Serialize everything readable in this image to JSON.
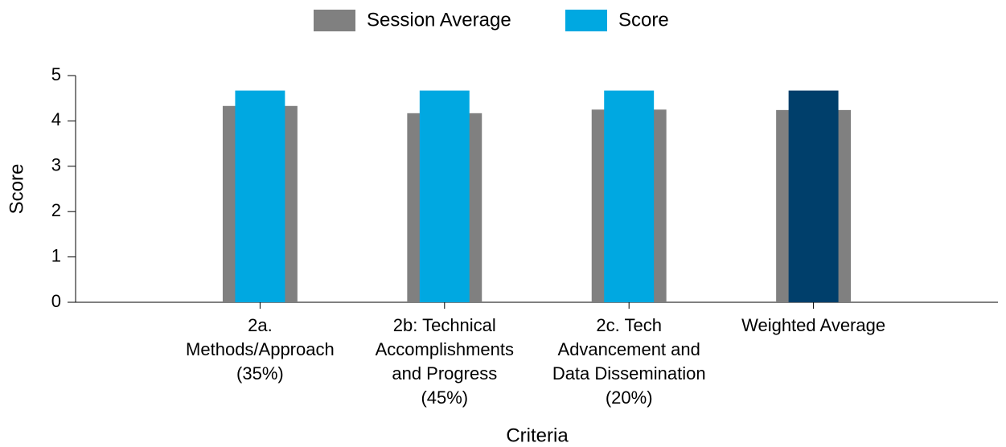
{
  "chart_data": {
    "type": "bar",
    "x_label": "Criteria",
    "y_label": "Score",
    "categories": [
      "2a.\nMethods/Approach\n(35%)",
      "2b: Technical\nAccomplishments\nand Progress\n(45%)",
      "2c. Tech\nAdvancement and\nData Dissemination\n(20%)",
      "Weighted Average"
    ],
    "series": [
      {
        "name": "Session Average",
        "color": "#808080",
        "values": [
          4.33,
          4.17,
          4.25,
          4.24
        ]
      },
      {
        "name": "Score",
        "color": "#00a8e1",
        "colors": [
          "#00a8e1",
          "#00a8e1",
          "#00a8e1",
          "#003f6b"
        ],
        "values": [
          4.67,
          4.67,
          4.67,
          4.67
        ]
      }
    ],
    "ylim": [
      0,
      5
    ],
    "yticks": [
      0,
      1,
      2,
      3,
      4,
      5
    ],
    "grid": false
  }
}
